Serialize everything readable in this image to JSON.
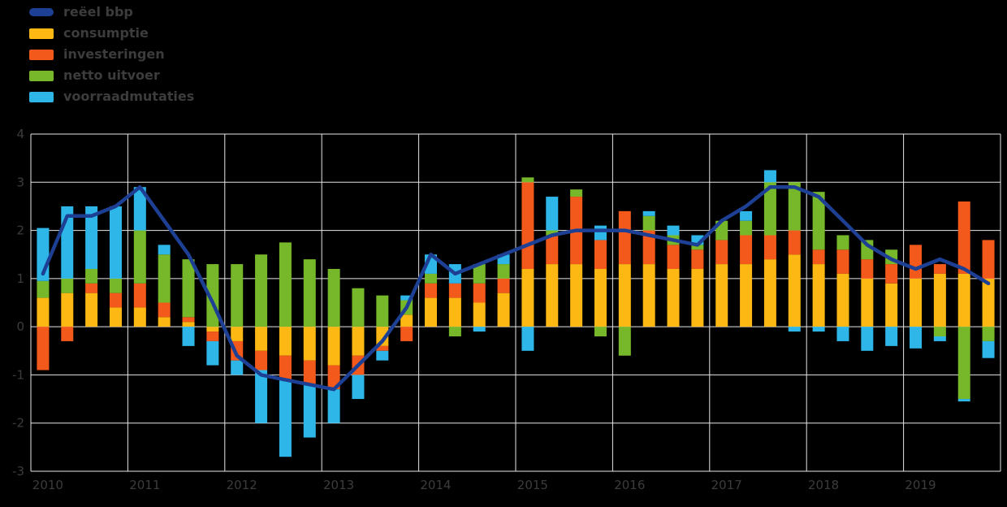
{
  "colors": {
    "background": "#000000",
    "grid": "#e6e6e6",
    "text": "#3c3c3c"
  },
  "chart_data": {
    "type": "bar",
    "subtype": "stacked-bar-with-line",
    "title": "",
    "xlabel": "",
    "ylabel": "",
    "frequency": "quarterly",
    "x_tick_labels": [
      "2010",
      "2011",
      "2012",
      "2013",
      "2014",
      "2015",
      "2016",
      "2017",
      "2018",
      "2019"
    ],
    "y_ticks": [
      4,
      3,
      2,
      1,
      0,
      -1,
      -2,
      -3
    ],
    "ylim": [
      -3,
      4
    ],
    "grid": true,
    "legend_position": "top-left",
    "series": [
      {
        "name": "consumptie",
        "color": "#fdb813",
        "values": [
          0.6,
          0.7,
          0.7,
          0.4,
          0.4,
          0.2,
          0.1,
          -0.1,
          -0.3,
          -0.5,
          -0.6,
          -0.7,
          -0.8,
          -0.6,
          -0.4,
          0.25,
          0.6,
          0.6,
          0.5,
          0.7,
          1.2,
          1.3,
          1.3,
          1.2,
          1.3,
          1.3,
          1.2,
          1.2,
          1.3,
          1.3,
          1.4,
          1.5,
          1.3,
          1.1,
          1.0,
          0.9,
          1.0,
          1.1,
          1.1,
          1.0
        ]
      },
      {
        "name": "investeringen",
        "color": "#f4591c",
        "values": [
          -0.9,
          -0.3,
          0.2,
          0.3,
          0.5,
          0.3,
          0.1,
          -0.2,
          -0.4,
          -0.4,
          -0.5,
          -0.5,
          -0.5,
          -0.4,
          -0.1,
          -0.3,
          0.3,
          0.3,
          0.4,
          0.3,
          1.8,
          0.6,
          1.4,
          0.6,
          1.1,
          0.7,
          0.5,
          0.4,
          0.5,
          0.6,
          0.5,
          0.5,
          0.3,
          0.5,
          0.4,
          0.4,
          0.7,
          0.2,
          1.5,
          0.8
        ]
      },
      {
        "name": "netto uitvoer",
        "color": "#77b82a",
        "values": [
          0.35,
          0.3,
          0.3,
          0.3,
          1.1,
          1.0,
          1.2,
          1.3,
          1.3,
          1.5,
          1.75,
          1.4,
          1.2,
          0.8,
          0.65,
          0.3,
          0.2,
          -0.2,
          0.4,
          0.3,
          0.1,
          0.1,
          0.15,
          -0.2,
          -0.6,
          0.3,
          0.2,
          0.1,
          0.4,
          0.3,
          1.1,
          1.0,
          1.2,
          0.3,
          0.4,
          0.3,
          0.0,
          -0.2,
          -1.5,
          -0.3
        ]
      },
      {
        "name": "voorraadmutaties",
        "color": "#2eb6e8",
        "values": [
          1.1,
          1.5,
          1.3,
          1.5,
          0.9,
          0.2,
          -0.4,
          -0.5,
          -0.3,
          -1.1,
          -1.6,
          -1.1,
          -0.7,
          -0.5,
          -0.2,
          0.1,
          0.4,
          0.4,
          -0.1,
          0.2,
          -0.5,
          0.7,
          0.0,
          0.3,
          0.0,
          0.1,
          0.2,
          0.2,
          0.0,
          0.2,
          0.25,
          -0.1,
          -0.1,
          -0.3,
          -0.5,
          -0.4,
          -0.45,
          -0.1,
          -0.05,
          -0.35
        ]
      }
    ],
    "line_series": {
      "name": "reëel bbp",
      "color": "#1d4094",
      "values": [
        1.1,
        2.3,
        2.3,
        2.5,
        2.9,
        2.2,
        1.5,
        0.5,
        -0.6,
        -1.0,
        -1.1,
        -1.2,
        -1.3,
        -0.8,
        -0.3,
        0.4,
        1.5,
        1.1,
        1.3,
        1.5,
        1.7,
        1.9,
        2.0,
        2.0,
        2.0,
        1.9,
        1.8,
        1.7,
        2.2,
        2.5,
        2.9,
        2.9,
        2.7,
        2.2,
        1.7,
        1.4,
        1.2,
        1.4,
        1.2,
        0.9
      ]
    }
  }
}
